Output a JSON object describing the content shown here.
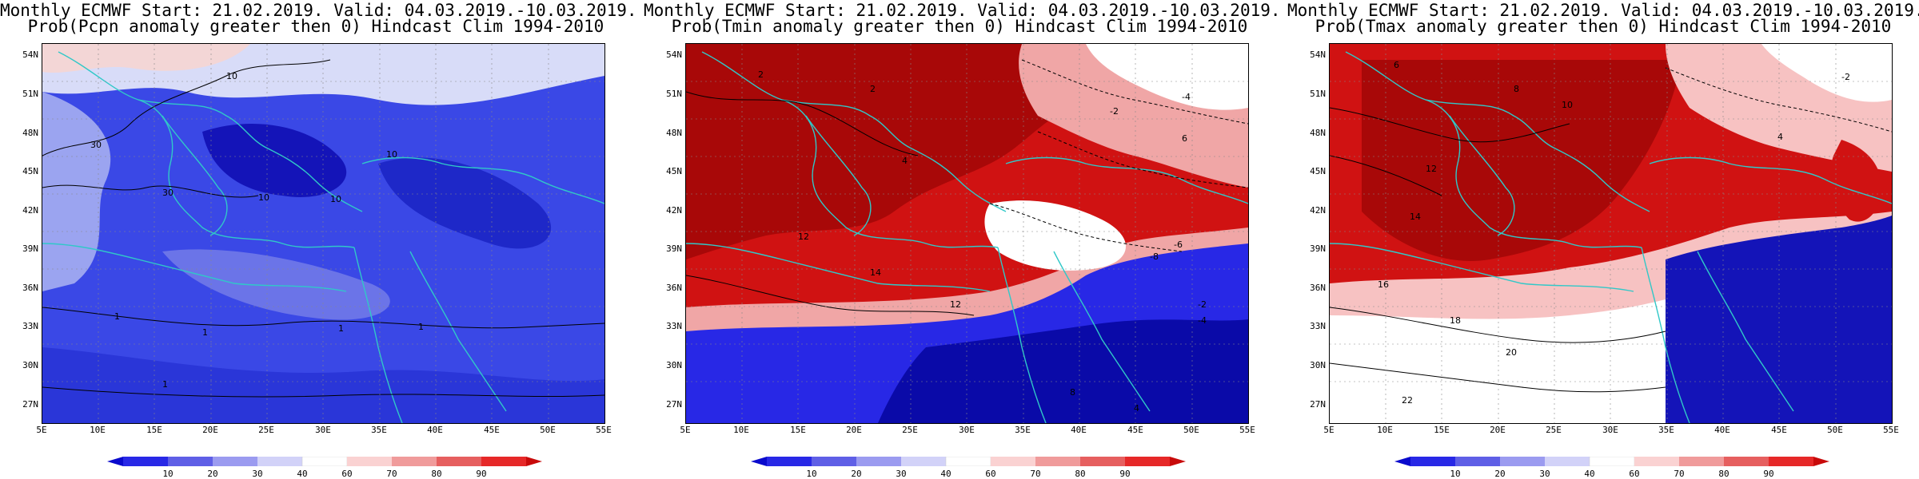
{
  "panels": [
    {
      "title_line1": "Monthly ECMWF Start: 21.02.2019. Valid: 04.03.2019.-10.03.2019.",
      "title_line2": "Prob(Pcpn anomaly greater then 0) Hindcast Clim 1994-2010",
      "variable": "Pcpn",
      "dominant_color": "#3a48e6",
      "contour_labels": [
        "10",
        "10",
        "10",
        "10",
        "30",
        "30",
        "1",
        "1",
        "1",
        "1",
        "1"
      ]
    },
    {
      "title_line1": "Monthly ECMWF Start: 21.02.2019. Valid: 04.03.2019.-10.03.2019.",
      "title_line2": "Prob(Tmin anomaly greater then 0) Hindcast Clim 1994-2010",
      "variable": "Tmin",
      "dominant_color": "#d01212",
      "contour_labels": [
        "2",
        "2",
        "4",
        "-2",
        "-4",
        "6",
        "12",
        "14",
        "-2",
        "-4",
        "-6",
        "-8",
        "8",
        "4",
        "12"
      ]
    },
    {
      "title_line1": "Monthly ECMWF Start: 21.02.2019. Valid: 04.03.2019.-10.03.2019.",
      "title_line2": "Prob(Tmax anomaly greater then 0) Hindcast Clim 1994-2010",
      "variable": "Tmax",
      "dominant_color": "#d01212",
      "contour_labels": [
        "6",
        "8",
        "10",
        "12",
        "14",
        "16",
        "18",
        "20",
        "22",
        "-2",
        "4"
      ]
    }
  ],
  "map": {
    "lat_labels": [
      "54N",
      "51N",
      "48N",
      "45N",
      "42N",
      "39N",
      "36N",
      "33N",
      "30N",
      "27N"
    ],
    "lon_labels": [
      "5E",
      "10E",
      "15E",
      "20E",
      "25E",
      "30E",
      "35E",
      "40E",
      "45E",
      "50E",
      "55E"
    ],
    "lat_range": [
      25,
      55.5
    ],
    "lon_range": [
      5,
      55
    ]
  },
  "colorbar": {
    "labels": [
      "10",
      "20",
      "30",
      "40",
      "60",
      "70",
      "80",
      "90"
    ],
    "colors": [
      "#0a0acd",
      "#2828e6",
      "#5f5fe6",
      "#9b9bf0",
      "#d2d2f8",
      "#ffffff",
      "#fad2d2",
      "#f09b9b",
      "#e65f5f",
      "#e62828",
      "#c80a0a"
    ]
  }
}
